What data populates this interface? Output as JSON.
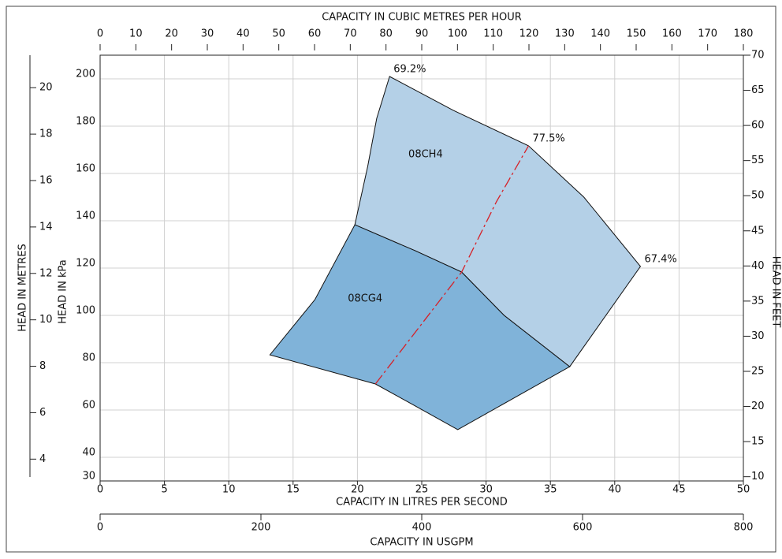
{
  "chart_data": {
    "type": "region",
    "xlabel": "CAPACITY IN LITRES PER SECOND",
    "xlim": [
      0,
      50
    ],
    "xticks": [
      0,
      5,
      10,
      15,
      20,
      25,
      30,
      35,
      40,
      45,
      50
    ],
    "ylabel": "HEAD IN kPa",
    "ylim": [
      30,
      210
    ],
    "yticks": [
      30,
      40,
      60,
      80,
      100,
      120,
      140,
      160,
      180,
      200
    ],
    "x2label": "CAPACITY IN CUBIC METRES PER HOUR",
    "x2lim": [
      0,
      180
    ],
    "x2ticks": [
      0,
      10,
      20,
      30,
      40,
      50,
      60,
      70,
      80,
      90,
      100,
      110,
      120,
      130,
      140,
      150,
      160,
      170,
      180
    ],
    "x3label": "CAPACITY IN USGPM",
    "x3lim": [
      0,
      800
    ],
    "x3ticks": [
      0,
      200,
      400,
      600,
      800
    ],
    "y2label": "HEAD IN FEET",
    "y2lim": [
      9.4,
      70
    ],
    "y2ticks": [
      10,
      15,
      20,
      25,
      30,
      35,
      40,
      45,
      50,
      55,
      60,
      65,
      70
    ],
    "y3label": "HEAD IN METRES",
    "y3lim": [
      3.06,
      21.4
    ],
    "y3ticks": [
      4,
      6,
      8,
      10,
      12,
      14,
      16,
      18,
      20
    ],
    "grid": true,
    "series": [
      {
        "name": "08CH4",
        "color": "#b4d0e7",
        "label_x": 25.3,
        "label_y": 168,
        "x": [
          19.8,
          20.8,
          21.5,
          22.5,
          27.45,
          33.3,
          37.6,
          42.0,
          36.5,
          31.4,
          28.1,
          24.5
        ],
        "values": [
          138.3,
          163,
          183.3,
          201,
          186.7,
          171.7,
          150,
          120.7,
          78.3,
          100,
          118.3,
          127.3
        ]
      },
      {
        "name": "08CG4",
        "color": "#80b3d9",
        "label_x": 20.6,
        "label_y": 107,
        "x": [
          19.8,
          24.5,
          28.1,
          31.4,
          36.5,
          27.8,
          24.5,
          21.4,
          13.2,
          16.7
        ],
        "values": [
          138.3,
          127.3,
          118.3,
          100,
          78.3,
          51.7,
          61.7,
          71,
          83.3,
          106.7
        ]
      }
    ],
    "curves": [
      {
        "color": "#d62027",
        "x": [
          21.4,
          24.8,
          28.1,
          30.8,
          33.3
        ],
        "values": [
          71,
          95,
          118.3,
          148,
          171.7
        ]
      }
    ],
    "annotations": [
      {
        "text": "69.2%",
        "x": 22.5,
        "y": 201
      },
      {
        "text": "77.5%",
        "x": 33.3,
        "y": 171.7
      },
      {
        "text": "67.4%",
        "x": 42.0,
        "y": 120.7
      }
    ]
  }
}
